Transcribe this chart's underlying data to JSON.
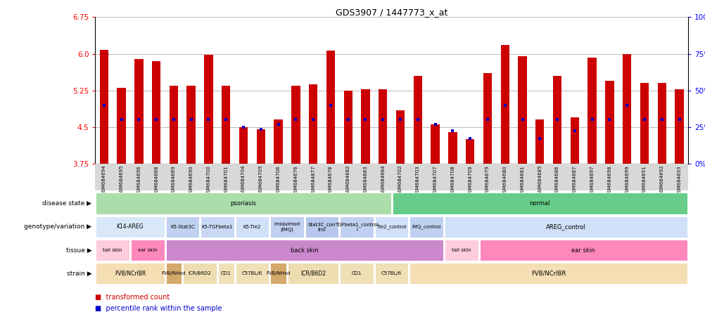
{
  "title": "GDS3907 / 1447773_x_at",
  "samples": [
    "GSM684694",
    "GSM684695",
    "GSM684696",
    "GSM684688",
    "GSM684689",
    "GSM684690",
    "GSM684700",
    "GSM684701",
    "GSM684704",
    "GSM684705",
    "GSM684706",
    "GSM684676",
    "GSM684677",
    "GSM684678",
    "GSM684682",
    "GSM684683",
    "GSM684684",
    "GSM684702",
    "GSM684703",
    "GSM684707",
    "GSM684708",
    "GSM684709",
    "GSM684679",
    "GSM684680",
    "GSM684681",
    "GSM684685",
    "GSM684686",
    "GSM684687",
    "GSM684697",
    "GSM684698",
    "GSM684699",
    "GSM684691",
    "GSM684692",
    "GSM684693"
  ],
  "bar_heights": [
    6.08,
    5.3,
    5.9,
    5.85,
    5.35,
    5.35,
    5.98,
    5.35,
    4.5,
    4.45,
    4.65,
    5.35,
    5.38,
    6.07,
    5.25,
    5.27,
    5.27,
    4.85,
    5.55,
    4.55,
    4.4,
    4.25,
    5.6,
    6.18,
    5.95,
    4.65,
    5.55,
    4.7,
    5.92,
    5.45,
    6.0,
    5.4,
    5.4,
    5.28
  ],
  "blue_dots": [
    4.95,
    4.65,
    4.65,
    4.65,
    4.65,
    4.65,
    4.65,
    4.65,
    4.5,
    4.45,
    4.55,
    4.65,
    4.65,
    4.95,
    4.65,
    4.65,
    4.65,
    4.65,
    4.65,
    4.55,
    4.43,
    4.27,
    4.65,
    4.95,
    4.65,
    4.27,
    4.65,
    4.43,
    4.65,
    4.65,
    4.95,
    4.65,
    4.65,
    4.65
  ],
  "y_min": 3.75,
  "y_max": 6.75,
  "y_ticks_left": [
    3.75,
    4.5,
    5.25,
    6.0,
    6.75
  ],
  "y_ticks_right_pct": [
    0,
    25,
    50,
    75,
    100
  ],
  "bar_color": "#cc0000",
  "blue_color": "#0000cc",
  "rows": [
    {
      "label": "disease state",
      "entries": [
        {
          "text": "psoriasis",
          "start": 0,
          "end": 17,
          "color": "#aaddaa"
        },
        {
          "text": "normal",
          "start": 17,
          "end": 34,
          "color": "#66cc88"
        }
      ]
    },
    {
      "label": "genotype/variation",
      "entries": [
        {
          "text": "K14-AREG",
          "start": 0,
          "end": 4,
          "color": "#d8e8f8"
        },
        {
          "text": "K5-Stat3C",
          "start": 4,
          "end": 6,
          "color": "#c0d0f0"
        },
        {
          "text": "K5-TGFbeta1",
          "start": 6,
          "end": 8,
          "color": "#c8d8f4"
        },
        {
          "text": "K5-Tie2",
          "start": 8,
          "end": 10,
          "color": "#d0e0f8"
        },
        {
          "text": "imiquimod\n(IMQ)",
          "start": 10,
          "end": 12,
          "color": "#c0d0f0"
        },
        {
          "text": "Stat3C_con\ntrol",
          "start": 12,
          "end": 14,
          "color": "#b8c8ec"
        },
        {
          "text": "TGFbeta1_control\nl",
          "start": 14,
          "end": 16,
          "color": "#c0d0f0"
        },
        {
          "text": "Tie2_control",
          "start": 16,
          "end": 18,
          "color": "#d0e0f8"
        },
        {
          "text": "IMQ_control",
          "start": 18,
          "end": 20,
          "color": "#c0d0f0"
        },
        {
          "text": "AREG_control",
          "start": 20,
          "end": 34,
          "color": "#d0e0f8"
        }
      ]
    },
    {
      "label": "tissue",
      "entries": [
        {
          "text": "tail skin",
          "start": 0,
          "end": 2,
          "color": "#ffccdd"
        },
        {
          "text": "ear skin",
          "start": 2,
          "end": 4,
          "color": "#ff88bb"
        },
        {
          "text": "back skin",
          "start": 4,
          "end": 20,
          "color": "#cc88cc"
        },
        {
          "text": "tail skin",
          "start": 20,
          "end": 22,
          "color": "#ffccdd"
        },
        {
          "text": "ear skin",
          "start": 22,
          "end": 34,
          "color": "#ff88bb"
        }
      ]
    },
    {
      "label": "strain",
      "entries": [
        {
          "text": "FVB/NCrIBR",
          "start": 0,
          "end": 4,
          "color": "#f5deb3"
        },
        {
          "text": "FVB/NHsd",
          "start": 4,
          "end": 5,
          "color": "#d4a96a"
        },
        {
          "text": "ICR/B6D2",
          "start": 5,
          "end": 7,
          "color": "#eeddb0"
        },
        {
          "text": "CD1",
          "start": 7,
          "end": 8,
          "color": "#f0e0b8"
        },
        {
          "text": "C57BL/6",
          "start": 8,
          "end": 10,
          "color": "#f0e0b8"
        },
        {
          "text": "FVB/NHsd",
          "start": 10,
          "end": 11,
          "color": "#d4a96a"
        },
        {
          "text": "ICR/B6D2",
          "start": 11,
          "end": 14,
          "color": "#eeddb0"
        },
        {
          "text": "CD1",
          "start": 14,
          "end": 16,
          "color": "#f0e0b8"
        },
        {
          "text": "C57BL/6",
          "start": 16,
          "end": 18,
          "color": "#f0e0b8"
        },
        {
          "text": "FVB/NCrIBR",
          "start": 18,
          "end": 34,
          "color": "#f5deb3"
        }
      ]
    }
  ]
}
